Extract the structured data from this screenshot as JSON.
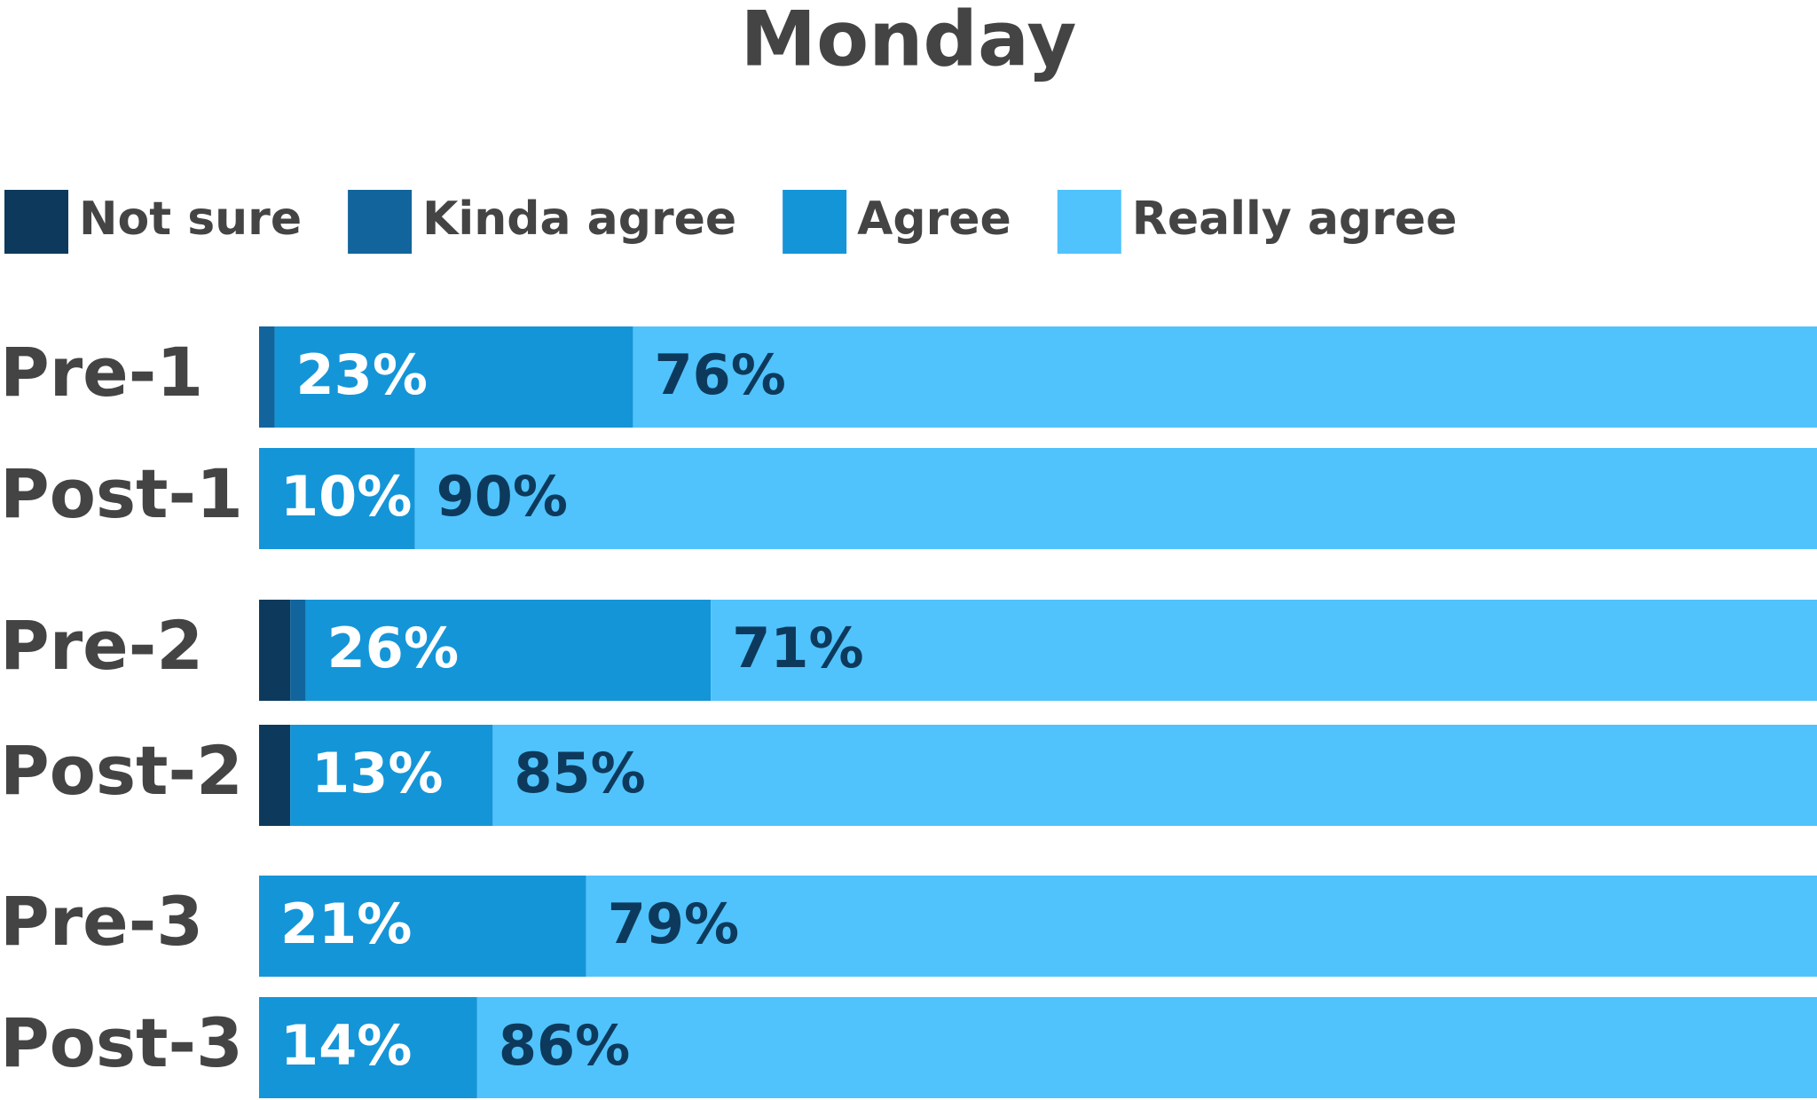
{
  "chart_data": {
    "type": "stacked-bar",
    "orientation": "horizontal",
    "title": "Monday",
    "categories": [
      "Pre-1",
      "Post-1",
      "Pre-2",
      "Post-2",
      "Pre-3",
      "Post-3"
    ],
    "xlim": [
      0,
      100
    ],
    "series": [
      {
        "name": "Not sure",
        "color": "#0d3a5c",
        "values": [
          0,
          0,
          2,
          2,
          0,
          0
        ]
      },
      {
        "name": "Kinda agree",
        "color": "#12659c",
        "values": [
          1,
          0,
          1,
          0,
          0,
          0
        ]
      },
      {
        "name": "Agree",
        "color": "#1495d8",
        "label_color": "#ffffff",
        "values": [
          23,
          10,
          26,
          13,
          21,
          14
        ],
        "value_labels": [
          "23%",
          "10%",
          "26%",
          "13%",
          "21%",
          "14%"
        ]
      },
      {
        "name": "Really agree",
        "color": "#50c3fc",
        "label_color": "#0d3a5c",
        "values": [
          76,
          90,
          71,
          85,
          79,
          86
        ],
        "value_labels": [
          "76%",
          "90%",
          "71%",
          "85%",
          "79%",
          "86%"
        ]
      }
    ]
  }
}
